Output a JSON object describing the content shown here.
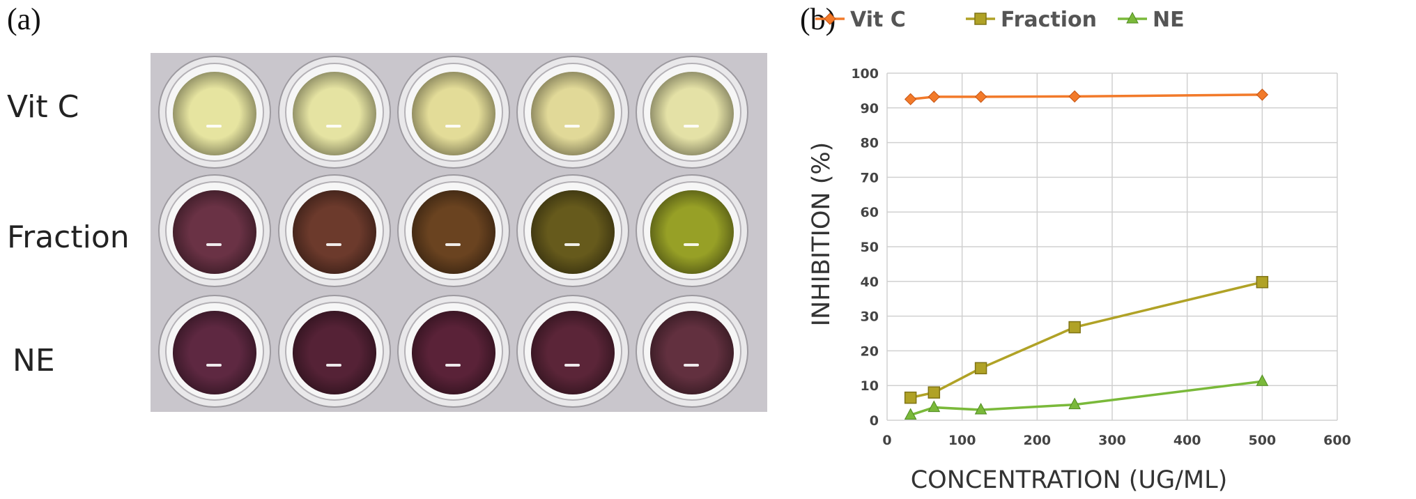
{
  "panel_a": {
    "label": "(a)",
    "row_labels": [
      "Vit C",
      "Fraction",
      "NE"
    ],
    "well_colors": [
      [
        "#e6e4a0",
        "#e5e3a2",
        "#e3dc98",
        "#e1d998",
        "#e4e1a6"
      ],
      [
        "#6a3245",
        "#6c3a2c",
        "#6a4320",
        "#665a1c",
        "#97a026"
      ],
      [
        "#5e2841",
        "#552236",
        "#5a2238",
        "#5b2538",
        "#62303f"
      ]
    ],
    "plate_color": "#c9c6cc"
  },
  "panel_b": {
    "label": "(b)"
  },
  "chart_data": {
    "type": "line",
    "x": [
      31.25,
      62.5,
      125,
      250,
      500
    ],
    "series": [
      {
        "name": "Vit C",
        "values": [
          92.5,
          93.2,
          93.2,
          93.3,
          93.8
        ],
        "color": "#f27a2a",
        "marker": "diamond"
      },
      {
        "name": "Fraction",
        "values": [
          6.5,
          8.0,
          15.0,
          26.8,
          39.8
        ],
        "color": "#b0a226",
        "marker": "square"
      },
      {
        "name": "NE",
        "values": [
          1.5,
          3.7,
          3.0,
          4.5,
          11.2
        ],
        "color": "#7ab93a",
        "marker": "triangle"
      }
    ],
    "xlabel": "CONCENTRATION (UG/ML)",
    "ylabel": "INHIBITION (%)",
    "xlim": [
      0,
      600
    ],
    "ylim": [
      0,
      100
    ],
    "xticks": [
      "0",
      "100",
      "200",
      "300",
      "400",
      "500",
      "600"
    ],
    "yticks": [
      "0",
      "10",
      "20",
      "30",
      "40",
      "50",
      "60",
      "70",
      "80",
      "90",
      "100"
    ],
    "grid": true,
    "legend_position": "top"
  }
}
